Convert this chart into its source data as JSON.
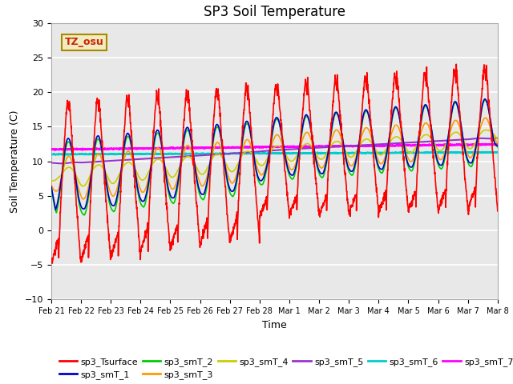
{
  "title": "SP3 Soil Temperature",
  "xlabel": "Time",
  "ylabel": "Soil Temperature (C)",
  "ylim": [
    -10,
    30
  ],
  "yticks": [
    -10,
    -5,
    0,
    5,
    10,
    15,
    20,
    25,
    30
  ],
  "xtick_labels": [
    "Feb 21",
    "Feb 22",
    "Feb 23",
    "Feb 24",
    "Feb 25",
    "Feb 26",
    "Feb 27",
    "Feb 28",
    "Mar 1",
    "Mar 2",
    "Mar 3",
    "Mar 4",
    "Mar 5",
    "Mar 6",
    "Mar 7",
    "Mar 8"
  ],
  "annotation_text": "TZ_osu",
  "annotation_color": "#cc2200",
  "annotation_bg": "#f0ecc0",
  "annotation_border": "#aa8800",
  "series_colors": {
    "sp3_Tsurface": "#ff0000",
    "sp3_smT_1": "#0000cc",
    "sp3_smT_2": "#00cc00",
    "sp3_smT_3": "#ff9900",
    "sp3_smT_4": "#cccc00",
    "sp3_smT_5": "#9933cc",
    "sp3_smT_6": "#00cccc",
    "sp3_smT_7": "#ff00ff"
  },
  "background_color": "#e8e8e8",
  "title_fontsize": 12,
  "axis_fontsize": 9,
  "tick_fontsize": 8
}
